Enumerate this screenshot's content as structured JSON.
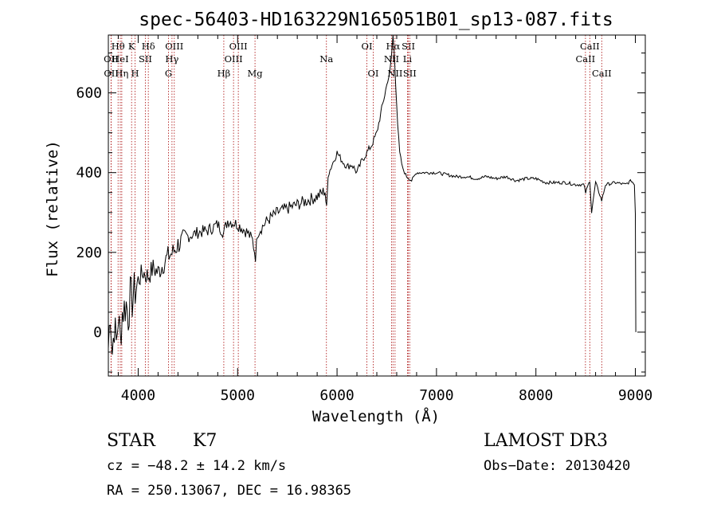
{
  "chart_data": {
    "type": "line",
    "title": "spec-56403-HD163229N165051B01_sp13-087.fits",
    "xlabel": "Wavelength (Å)",
    "ylabel": "Flux (relative)",
    "xlim": [
      3700,
      9100
    ],
    "ylim": [
      -110,
      745
    ],
    "xticks": [
      4000,
      5000,
      6000,
      7000,
      8000,
      9000
    ],
    "yticks": [
      0,
      200,
      400,
      600
    ],
    "line_color": "#000000",
    "marker_color": "#b22222",
    "series": [
      {
        "name": "flux",
        "x": [
          3700,
          3720,
          3740,
          3760,
          3780,
          3800,
          3820,
          3840,
          3860,
          3880,
          3900,
          3920,
          3940,
          3960,
          3980,
          4000,
          4050,
          4100,
          4150,
          4200,
          4250,
          4300,
          4350,
          4400,
          4500,
          4600,
          4700,
          4800,
          4860,
          4900,
          5000,
          5100,
          5150,
          5180,
          5200,
          5300,
          5400,
          5500,
          5600,
          5700,
          5800,
          5880,
          5895,
          5910,
          5950,
          6000,
          6050,
          6100,
          6150,
          6200,
          6250,
          6300,
          6350,
          6400,
          6450,
          6500,
          6530,
          6550,
          6563,
          6575,
          6590,
          6610,
          6630,
          6660,
          6700,
          6750,
          6800,
          6900,
          7000,
          7100,
          7200,
          7300,
          7400,
          7500,
          7600,
          7700,
          7800,
          7900,
          8000,
          8100,
          8200,
          8300,
          8400,
          8480,
          8500,
          8542,
          8560,
          8600,
          8662,
          8700,
          8800,
          8900,
          8960,
          8990,
          9000,
          9005
        ],
        "y": [
          -40,
          60,
          -50,
          20,
          -30,
          40,
          -20,
          50,
          60,
          70,
          40,
          90,
          80,
          100,
          110,
          130,
          150,
          140,
          160,
          150,
          170,
          190,
          200,
          220,
          240,
          250,
          255,
          270,
          250,
          280,
          270,
          250,
          230,
          190,
          250,
          280,
          300,
          310,
          320,
          330,
          340,
          355,
          305,
          395,
          420,
          450,
          430,
          415,
          420,
          400,
          430,
          450,
          470,
          500,
          560,
          620,
          650,
          700,
          745,
          700,
          620,
          520,
          450,
          410,
          390,
          380,
          400,
          400,
          400,
          395,
          390,
          390,
          385,
          390,
          385,
          390,
          380,
          385,
          385,
          375,
          375,
          375,
          370,
          370,
          350,
          380,
          300,
          375,
          330,
          370,
          375,
          370,
          380,
          370,
          300,
          0
        ]
      }
    ],
    "line_markers": [
      {
        "label": "Hθ",
        "x": 3798,
        "row": 0
      },
      {
        "label": "OII",
        "x": 3727,
        "row": 1
      },
      {
        "label": "OII",
        "x": 3729,
        "row": 2
      },
      {
        "label": "HeI",
        "x": 3820,
        "row": 1
      },
      {
        "label": "Hη",
        "x": 3835,
        "row": 2
      },
      {
        "label": "K",
        "x": 3934,
        "row": 0
      },
      {
        "label": "H",
        "x": 3969,
        "row": 2
      },
      {
        "label": "SII",
        "x": 4072,
        "row": 1
      },
      {
        "label": "Hδ",
        "x": 4102,
        "row": 0
      },
      {
        "label": "OIII",
        "x": 4363,
        "row": 0
      },
      {
        "label": "Hγ",
        "x": 4340,
        "row": 1
      },
      {
        "label": "G",
        "x": 4305,
        "row": 2
      },
      {
        "label": "Hβ",
        "x": 4861,
        "row": 2
      },
      {
        "label": "OIII",
        "x": 5007,
        "row": 0
      },
      {
        "label": "OIII",
        "x": 4959,
        "row": 1
      },
      {
        "label": "Mg",
        "x": 5175,
        "row": 2
      },
      {
        "label": "Na",
        "x": 5893,
        "row": 1
      },
      {
        "label": "OI",
        "x": 6300,
        "row": 0
      },
      {
        "label": "OI",
        "x": 6364,
        "row": 2
      },
      {
        "label": "Hα",
        "x": 6563,
        "row": 0
      },
      {
        "label": "NII",
        "x": 6548,
        "row": 1
      },
      {
        "label": "NII",
        "x": 6583,
        "row": 2
      },
      {
        "label": "SII",
        "x": 6717,
        "row": 0
      },
      {
        "label": "Li",
        "x": 6708,
        "row": 1
      },
      {
        "label": "SII",
        "x": 6731,
        "row": 2
      },
      {
        "label": "CaII",
        "x": 8542,
        "row": 0
      },
      {
        "label": "CaII",
        "x": 8498,
        "row": 1
      },
      {
        "label": "CaII",
        "x": 8662,
        "row": 2
      }
    ]
  },
  "info": {
    "class": "STAR",
    "subclass": "K7",
    "survey": "LAMOST DR3",
    "cz": "cz = −48.2 ± 14.2 km/s",
    "obs_date": "Obs−Date: 20130420",
    "radec": "RA = 250.13067, DEC =  16.98365"
  }
}
